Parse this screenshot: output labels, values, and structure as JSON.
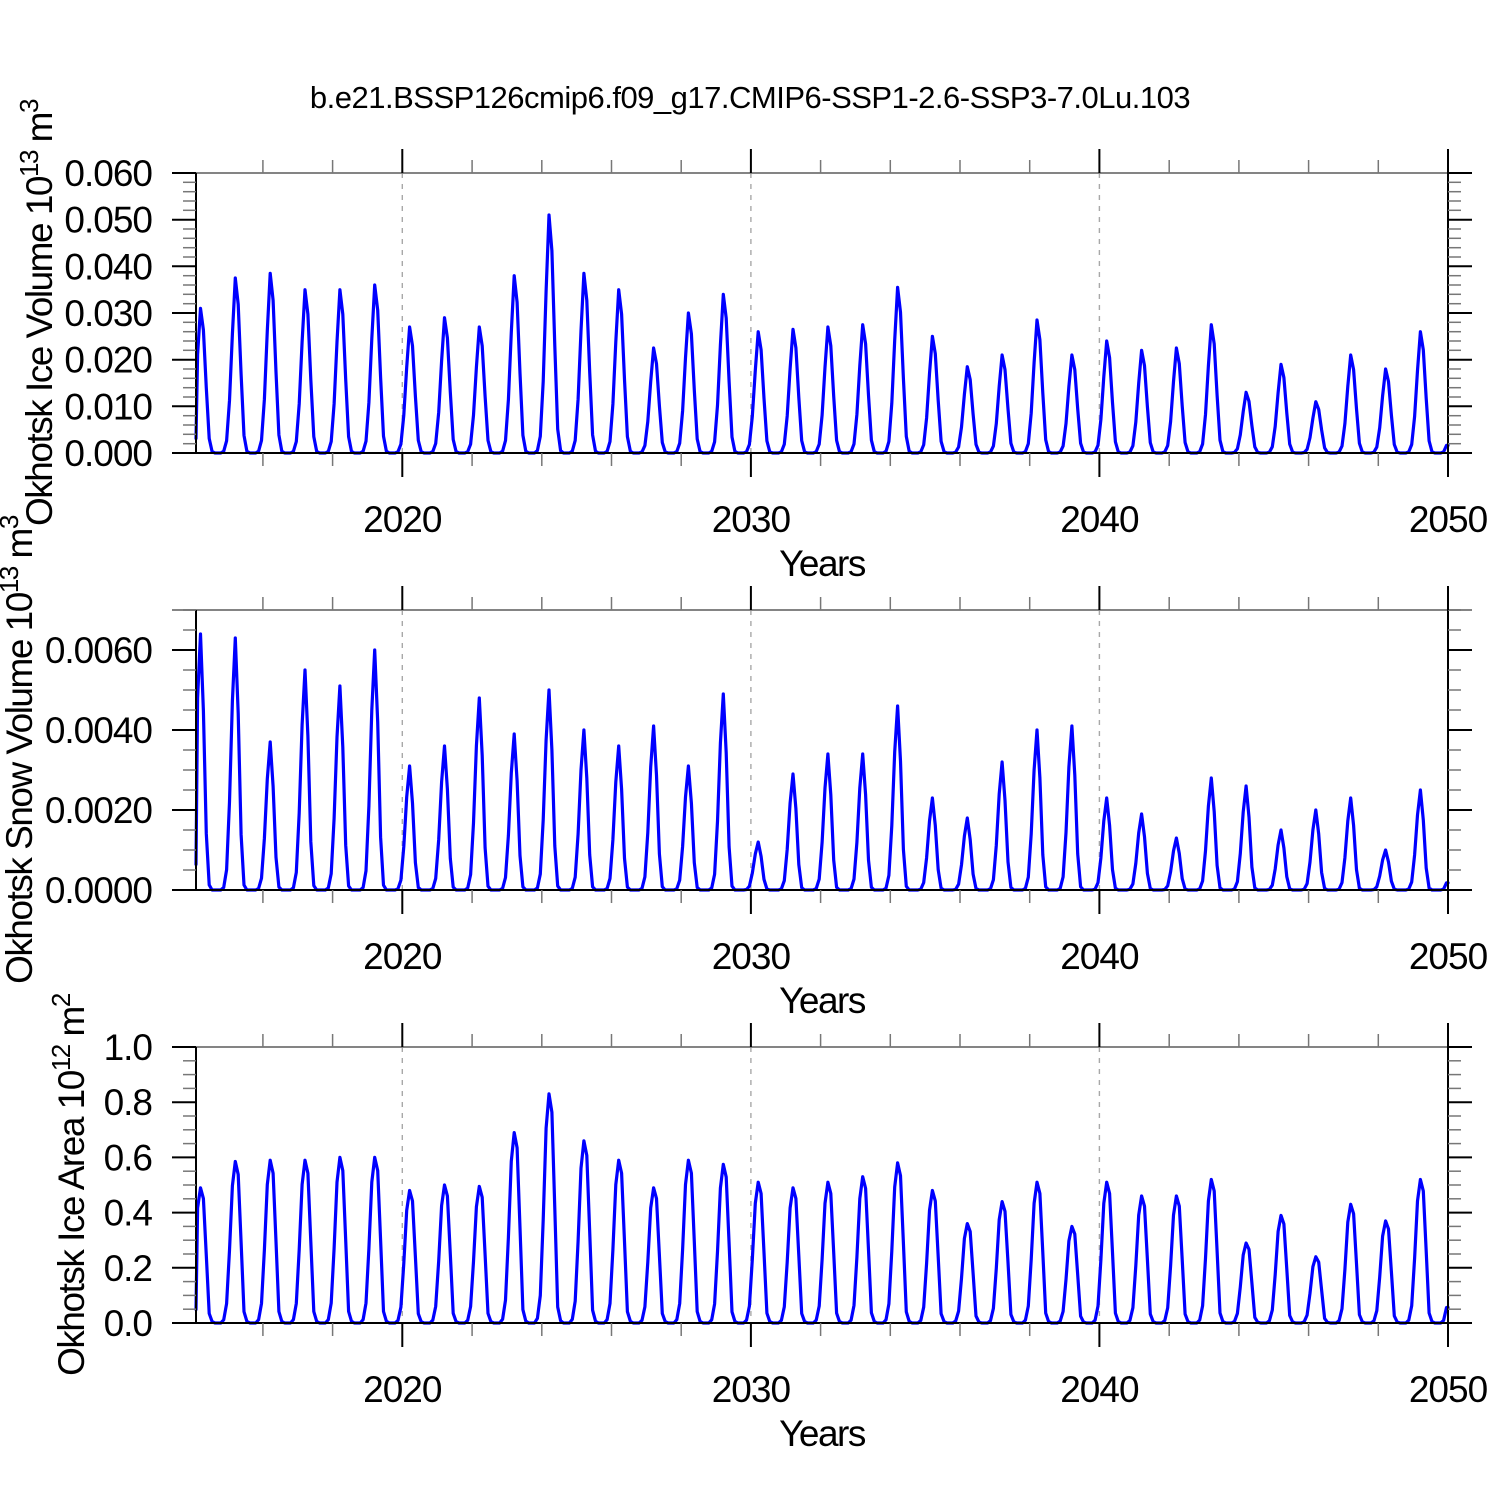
{
  "title": "b.e21.BSSP126cmip6.f09_g17.CMIP6-SSP1-2.6-SSP3-7.0Lu.103",
  "colors": {
    "line": "#0000ff",
    "grid": "#a8a8a8",
    "axis": "#000000",
    "top_border": "#848484",
    "minor_tick": "#777777"
  },
  "x_axis": {
    "label": "Years",
    "start": 2014.08,
    "end": 2050.0,
    "major_ticks": [
      2020,
      2030,
      2040,
      2050
    ],
    "tick_labels": [
      "2020",
      "2030",
      "2040",
      "2050"
    ],
    "minor_start": 2016,
    "minor_step": 2,
    "grid_years": [
      2020,
      2030,
      2040
    ]
  },
  "chart_data": [
    {
      "type": "line",
      "name": "okhotsk-ice-volume",
      "ylabel_text": "Okhotsk Ice Volume 10^13 m^3",
      "ylabel_parts": [
        [
          "Okhotsk Ice Volume 10",
          0
        ],
        [
          "13",
          1
        ],
        [
          " m",
          0
        ],
        [
          "3",
          1
        ]
      ],
      "ylim": [
        0,
        0.06
      ],
      "ymajor_step": 0.01,
      "yminor_step": 0.002,
      "ytick_labels": [
        "0.000",
        "0.010",
        "0.020",
        "0.030",
        "0.040",
        "0.050",
        "0.060"
      ],
      "seasonal_shape": [
        0.3,
        0.68,
        1.0,
        0.85,
        0.45,
        0.1,
        0.01,
        0,
        0,
        0,
        0.01,
        0.07
      ],
      "series": {
        "years": [
          2014,
          2015,
          2016,
          2017,
          2018,
          2019,
          2020,
          2021,
          2022,
          2023,
          2024,
          2025,
          2026,
          2027,
          2028,
          2029,
          2030,
          2031,
          2032,
          2033,
          2034,
          2035,
          2036,
          2037,
          2038,
          2039,
          2040,
          2041,
          2042,
          2043,
          2044,
          2045,
          2046,
          2047,
          2048,
          2049
        ],
        "annual_peaks": [
          0.031,
          0.0375,
          0.0385,
          0.035,
          0.035,
          0.036,
          0.027,
          0.029,
          0.027,
          0.038,
          0.051,
          0.0385,
          0.035,
          0.0225,
          0.03,
          0.034,
          0.026,
          0.0265,
          0.027,
          0.0275,
          0.0355,
          0.025,
          0.0185,
          0.021,
          0.0285,
          0.021,
          0.024,
          0.022,
          0.0225,
          0.0275,
          0.013,
          0.019,
          0.011,
          0.021,
          0.018,
          0.026
        ]
      }
    },
    {
      "type": "line",
      "name": "okhotsk-snow-volume",
      "ylabel_text": "Okhotsk Snow Volume 10^13 m^3",
      "ylabel_parts": [
        [
          "Okhotsk Snow Volume 10",
          0
        ],
        [
          "13",
          1
        ],
        [
          " m",
          0
        ],
        [
          "3",
          1
        ]
      ],
      "ylim": [
        0,
        0.007
      ],
      "ymajor_step": 0.002,
      "yminor_step": 0.0005,
      "ytick_labels": [
        "0.0000",
        "0.0020",
        "0.0040",
        "0.0060"
      ],
      "seasonal_shape": [
        0.35,
        0.75,
        1.0,
        0.7,
        0.22,
        0.02,
        0,
        0,
        0,
        0,
        0.01,
        0.08
      ],
      "series": {
        "years": [
          2014,
          2015,
          2016,
          2017,
          2018,
          2019,
          2020,
          2021,
          2022,
          2023,
          2024,
          2025,
          2026,
          2027,
          2028,
          2029,
          2030,
          2031,
          2032,
          2033,
          2034,
          2035,
          2036,
          2037,
          2038,
          2039,
          2040,
          2041,
          2042,
          2043,
          2044,
          2045,
          2046,
          2047,
          2048,
          2049
        ],
        "annual_peaks": [
          0.0064,
          0.0063,
          0.0037,
          0.0055,
          0.0051,
          0.006,
          0.0031,
          0.0036,
          0.0048,
          0.0039,
          0.005,
          0.004,
          0.0036,
          0.0041,
          0.0031,
          0.0049,
          0.0012,
          0.0029,
          0.0034,
          0.0034,
          0.0046,
          0.0023,
          0.0018,
          0.0032,
          0.004,
          0.0041,
          0.0023,
          0.0019,
          0.0013,
          0.0028,
          0.0026,
          0.0015,
          0.002,
          0.0023,
          0.001,
          0.0025
        ]
      }
    },
    {
      "type": "line",
      "name": "okhotsk-ice-area",
      "ylabel_text": "Okhotsk Ice Area 10^12 m^2",
      "ylabel_parts": [
        [
          "Okhotsk Ice Area 10",
          0
        ],
        [
          "12",
          1
        ],
        [
          " m",
          0
        ],
        [
          "2",
          1
        ]
      ],
      "ylim": [
        0,
        1.0
      ],
      "ymajor_step": 0.2,
      "yminor_step": 0.05,
      "ytick_labels": [
        "0.0",
        "0.2",
        "0.4",
        "0.6",
        "0.8",
        "1.0"
      ],
      "seasonal_shape": [
        0.45,
        0.85,
        1.0,
        0.92,
        0.5,
        0.07,
        0.01,
        0,
        0,
        0,
        0.02,
        0.12
      ],
      "series": {
        "years": [
          2014,
          2015,
          2016,
          2017,
          2018,
          2019,
          2020,
          2021,
          2022,
          2023,
          2024,
          2025,
          2026,
          2027,
          2028,
          2029,
          2030,
          2031,
          2032,
          2033,
          2034,
          2035,
          2036,
          2037,
          2038,
          2039,
          2040,
          2041,
          2042,
          2043,
          2044,
          2045,
          2046,
          2047,
          2048,
          2049
        ],
        "annual_peaks": [
          0.49,
          0.585,
          0.59,
          0.59,
          0.6,
          0.6,
          0.48,
          0.5,
          0.495,
          0.69,
          0.83,
          0.66,
          0.59,
          0.49,
          0.59,
          0.575,
          0.51,
          0.49,
          0.51,
          0.53,
          0.58,
          0.48,
          0.36,
          0.44,
          0.51,
          0.35,
          0.51,
          0.46,
          0.46,
          0.52,
          0.29,
          0.39,
          0.24,
          0.43,
          0.37,
          0.52
        ]
      }
    }
  ]
}
